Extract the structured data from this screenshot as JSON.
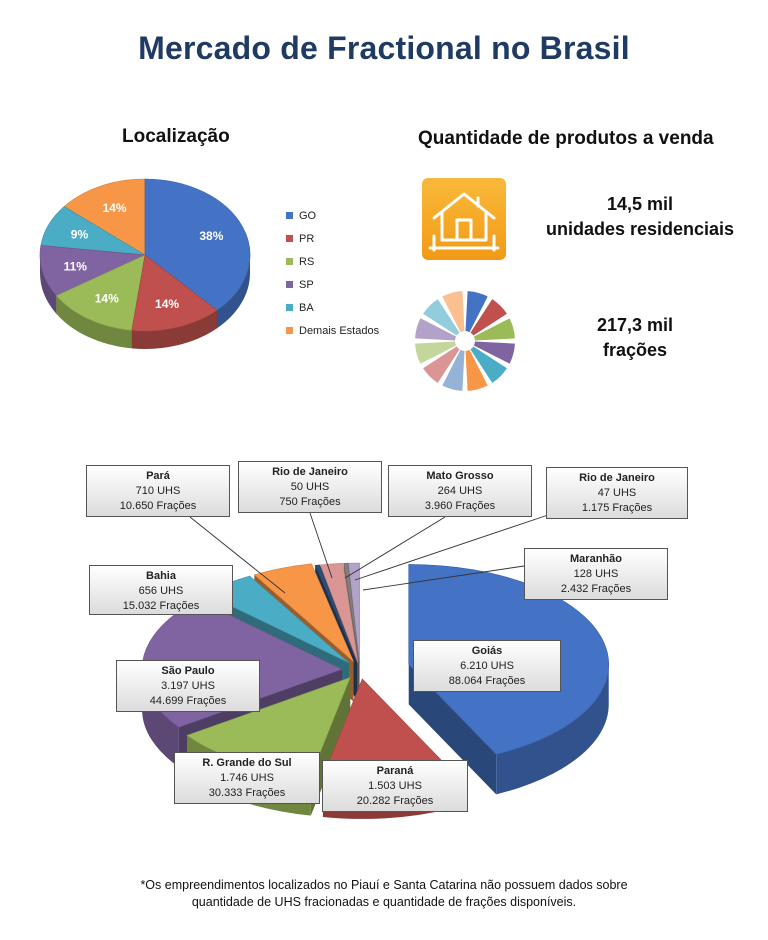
{
  "title": "Mercado de Fractional no Brasil",
  "sections": {
    "location_title": "Localização",
    "quantity_title": "Quantidade  de produtos a venda"
  },
  "stats": {
    "units_line1": "14,5 mil",
    "units_line2": "unidades residenciais",
    "fractions_line1": "217,3 mil",
    "fractions_line2": "frações"
  },
  "icons": [
    "house-icon",
    "pinwheel-icon"
  ],
  "chart_data": [
    {
      "type": "pie",
      "title": "Localização",
      "categories": [
        "GO",
        "PR",
        "RS",
        "SP",
        "BA",
        "Demais Estados"
      ],
      "values": [
        38,
        14,
        14,
        11,
        9,
        14
      ],
      "labels": [
        "38%",
        "14%",
        "14%",
        "11%",
        "9%",
        "14%"
      ],
      "colors": [
        "#4472c4",
        "#c0504d",
        "#9bbb59",
        "#8064a2",
        "#4bacc6",
        "#f79646"
      ],
      "legend_position": "right"
    },
    {
      "type": "pie",
      "categories": [
        "Goiás",
        "Paraná",
        "R. Grande do Sul",
        "São Paulo",
        "Bahia",
        "Pará",
        "Rio de Janeiro",
        "Mato Grosso",
        "Rio de Janeiro",
        "Maranhão"
      ],
      "values": [
        6210,
        1503,
        1746,
        3197,
        656,
        710,
        50,
        264,
        47,
        128
      ],
      "fracoes": [
        88064,
        20282,
        30333,
        44699,
        15032,
        10650,
        750,
        3960,
        1175,
        2432
      ],
      "callouts": [
        {
          "name": "Goiás",
          "uhs": "6.210 UHS",
          "fracoes": "88.064 Frações"
        },
        {
          "name": "Paraná",
          "uhs": "1.503 UHS",
          "fracoes": "20.282 Frações"
        },
        {
          "name": "R. Grande do Sul",
          "uhs": "1.746 UHS",
          "fracoes": "30.333 Frações"
        },
        {
          "name": "São Paulo",
          "uhs": "3.197 UHS",
          "fracoes": "44.699 Frações"
        },
        {
          "name": "Bahia",
          "uhs": "656 UHS",
          "fracoes": "15.032 Frações"
        },
        {
          "name": "Pará",
          "uhs": "710 UHS",
          "fracoes": "10.650 Frações"
        },
        {
          "name": "Rio de Janeiro",
          "uhs": "50 UHS",
          "fracoes": "750 Frações"
        },
        {
          "name": "Mato Grosso",
          "uhs": "264 UHS",
          "fracoes": "3.960 Frações"
        },
        {
          "name": "Rio de Janeiro",
          "uhs": "47 UHS",
          "fracoes": "1.175 Frações"
        },
        {
          "name": "Maranhão",
          "uhs": "128 UHS",
          "fracoes": "2.432 Frações"
        }
      ],
      "colors": [
        "#4472c4",
        "#c0504d",
        "#9bbb59",
        "#8064a2",
        "#4bacc6",
        "#f79646",
        "#2c4d75",
        "#d99694",
        "#7f7f7f",
        "#b3a2c7"
      ]
    }
  ],
  "footnote": {
    "line1": "*Os empreendimentos localizados no Piauí e Santa Catarina não possuem dados sobre",
    "line2": "quantidade de UHS fracionadas e quantidade de frações disponíveis."
  }
}
